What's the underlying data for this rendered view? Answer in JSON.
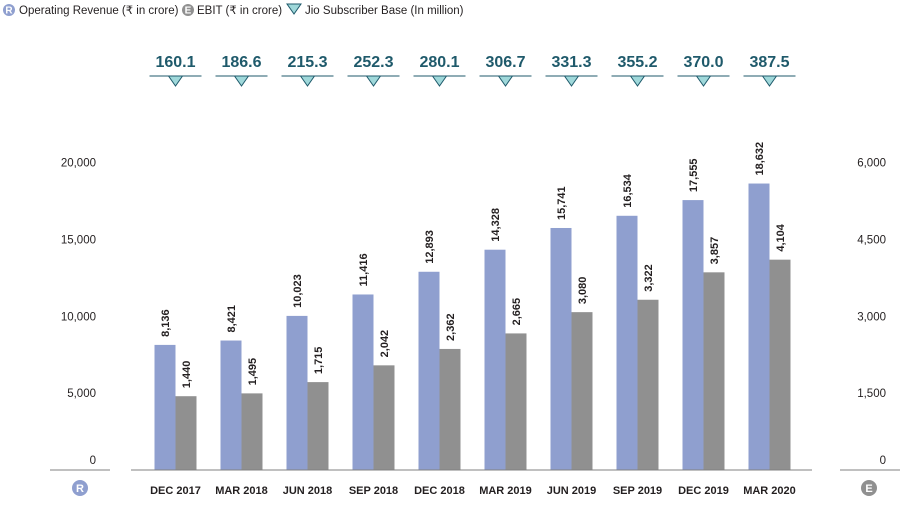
{
  "chart_data": {
    "type": "bar",
    "categories": [
      "DEC 2017",
      "MAR 2018",
      "JUN 2018",
      "SEP 2018",
      "DEC 2018",
      "MAR 2019",
      "JUN 2019",
      "SEP 2019",
      "DEC 2019",
      "MAR 2020"
    ],
    "series": [
      {
        "name": "Operating Revenue (₹ in crore)",
        "axis": "left",
        "color": "#8f9fcf",
        "values": [
          8136,
          8421,
          10023,
          11416,
          12893,
          14328,
          15741,
          16534,
          17555,
          18632
        ],
        "labels": [
          "8,136",
          "8,421",
          "10,023",
          "11,416",
          "12,893",
          "14,328",
          "15,741",
          "16,534",
          "17,555",
          "18,632"
        ]
      },
      {
        "name": "EBIT (₹ in crore)",
        "axis": "right",
        "color": "#909090",
        "values": [
          1440,
          1495,
          1715,
          2042,
          2362,
          2665,
          3080,
          3322,
          3857,
          4104
        ],
        "labels": [
          "1,440",
          "1,495",
          "1,715",
          "2,042",
          "2,362",
          "2,665",
          "3,080",
          "3,322",
          "3,857",
          "4,104"
        ]
      }
    ],
    "subscribers": {
      "name": "Jio Subscriber Base (In million)",
      "values": [
        160.1,
        186.6,
        215.3,
        252.3,
        280.1,
        306.7,
        331.3,
        355.2,
        370.0,
        387.5
      ],
      "labels": [
        "160.1",
        "186.6",
        "215.3",
        "252.3",
        "280.1",
        "306.7",
        "331.3",
        "355.2",
        "370.0",
        "387.5"
      ],
      "color": "#1f5a6b",
      "marker_color": "#9fd8da"
    },
    "y_left": {
      "ylim": [
        0,
        20000
      ],
      "ticks": [
        "0",
        "5,000",
        "10,000",
        "15,000",
        "20,000"
      ],
      "tick_values": [
        0,
        5000,
        10000,
        15000,
        20000
      ]
    },
    "y_right": {
      "ylim": [
        0,
        6000
      ],
      "ticks": [
        "0",
        "1,500",
        "3,000",
        "4,500",
        "6,000"
      ],
      "tick_values": [
        0,
        1500,
        3000,
        4500,
        6000
      ]
    },
    "legend": {
      "placement": "top-left"
    },
    "axis_badges": {
      "left": "R",
      "right": "E"
    },
    "grid": false
  }
}
